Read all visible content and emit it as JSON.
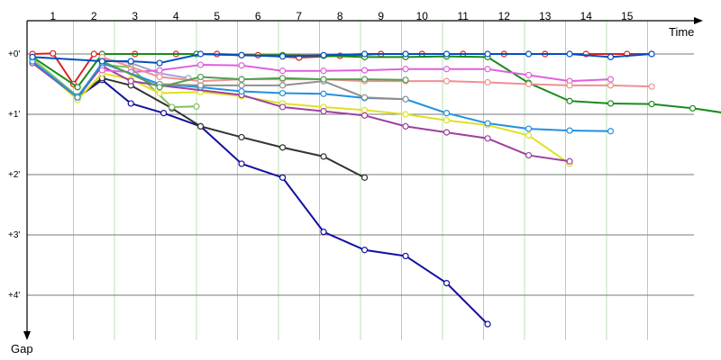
{
  "chart_data": {
    "type": "line",
    "title": "",
    "xlabel": "Time",
    "ylabel": "Gap",
    "x_ticks": [
      "1",
      "2",
      "3",
      "4",
      "5",
      "6",
      "7",
      "8",
      "9",
      "10",
      "11",
      "12",
      "13",
      "14",
      "15"
    ],
    "y_ticks": [
      "+0'",
      "+1'",
      "+2'",
      "+3'",
      "+4'"
    ],
    "ylim": [
      0,
      4.6
    ],
    "grid": true,
    "legend": "none",
    "series": [
      {
        "color": "#e02020",
        "values": [
          [
            0.5,
            0.0
          ],
          [
            1.0,
            -0.01
          ],
          [
            1.5,
            0.5
          ],
          [
            2.0,
            0.0
          ],
          [
            3.0,
            0.0
          ],
          [
            4.0,
            0.0
          ],
          [
            5.0,
            0.0
          ],
          [
            6.0,
            0.02
          ],
          [
            7.0,
            0.06
          ],
          [
            8.0,
            0.03
          ],
          [
            9.0,
            0.0
          ],
          [
            10.0,
            0.0
          ],
          [
            11.0,
            0.0
          ],
          [
            12.0,
            0.0
          ],
          [
            13.0,
            0.0
          ],
          [
            14.0,
            0.0
          ],
          [
            15.0,
            0.0
          ],
          [
            15.6,
            0.0
          ]
        ]
      },
      {
        "color": "#1010a0",
        "values": [
          [
            0.5,
            0.1
          ],
          [
            1.6,
            0.72
          ],
          [
            2.2,
            0.43
          ],
          [
            2.9,
            0.82
          ],
          [
            3.7,
            0.98
          ],
          [
            4.6,
            1.2
          ],
          [
            5.6,
            1.82
          ],
          [
            6.6,
            2.05
          ],
          [
            7.6,
            2.95
          ],
          [
            8.6,
            3.25
          ],
          [
            9.6,
            3.35
          ],
          [
            10.6,
            3.8
          ],
          [
            11.6,
            4.48
          ]
        ]
      },
      {
        "color": "#333333",
        "values": [
          [
            0.5,
            0.12
          ],
          [
            1.6,
            0.72
          ],
          [
            2.2,
            0.4
          ],
          [
            2.9,
            0.52
          ],
          [
            3.9,
            0.9
          ],
          [
            4.6,
            1.2
          ],
          [
            5.6,
            1.38
          ],
          [
            6.6,
            1.55
          ],
          [
            7.6,
            1.7
          ],
          [
            8.6,
            2.05
          ]
        ]
      },
      {
        "color": "#a0a0d0",
        "values": [
          [
            2.2,
            0.08
          ],
          [
            2.9,
            0.15
          ],
          [
            3.6,
            0.32
          ],
          [
            4.3,
            0.4
          ]
        ]
      },
      {
        "color": "#80c060",
        "values": [
          [
            0.5,
            0.08
          ],
          [
            1.6,
            0.7
          ],
          [
            2.2,
            0.18
          ],
          [
            2.9,
            0.22
          ],
          [
            3.9,
            0.88
          ],
          [
            4.5,
            0.87
          ]
        ]
      },
      {
        "color": "#1a8a1a",
        "values": [
          [
            0.5,
            0.05
          ],
          [
            1.6,
            0.55
          ],
          [
            2.2,
            0.0
          ],
          [
            4.5,
            0.0
          ],
          [
            5.6,
            0.02
          ],
          [
            6.6,
            0.02
          ],
          [
            7.6,
            0.03
          ],
          [
            8.6,
            0.05
          ],
          [
            9.6,
            0.05
          ],
          [
            10.6,
            0.04
          ],
          [
            11.6,
            0.05
          ],
          [
            12.6,
            0.48
          ],
          [
            13.6,
            0.78
          ],
          [
            14.6,
            0.82
          ],
          [
            15.6,
            0.83
          ],
          [
            16.6,
            0.9
          ],
          [
            17.6,
            1.0
          ]
        ]
      },
      {
        "color": "#e0e020",
        "values": [
          [
            0.5,
            0.1
          ],
          [
            1.6,
            0.76
          ],
          [
            2.2,
            0.32
          ],
          [
            2.9,
            0.42
          ],
          [
            3.6,
            0.65
          ],
          [
            4.6,
            0.63
          ],
          [
            5.6,
            0.7
          ],
          [
            6.6,
            0.82
          ],
          [
            7.6,
            0.88
          ],
          [
            8.6,
            0.93
          ],
          [
            9.6,
            1.0
          ],
          [
            10.6,
            1.1
          ],
          [
            11.6,
            1.18
          ],
          [
            12.6,
            1.35
          ],
          [
            13.6,
            1.82
          ]
        ]
      },
      {
        "color": "#a040a0",
        "values": [
          [
            0.5,
            0.15
          ],
          [
            1.6,
            0.72
          ],
          [
            2.2,
            0.2
          ],
          [
            2.9,
            0.45
          ],
          [
            3.6,
            0.52
          ],
          [
            5.6,
            0.68
          ],
          [
            6.6,
            0.88
          ],
          [
            7.6,
            0.95
          ],
          [
            8.6,
            1.02
          ],
          [
            9.6,
            1.2
          ],
          [
            10.6,
            1.3
          ],
          [
            11.6,
            1.4
          ],
          [
            12.6,
            1.68
          ],
          [
            13.6,
            1.78
          ]
        ]
      },
      {
        "color": "#e060e0",
        "values": [
          [
            2.2,
            0.27
          ],
          [
            2.9,
            0.3
          ],
          [
            3.6,
            0.27
          ],
          [
            4.6,
            0.18
          ],
          [
            5.6,
            0.19
          ],
          [
            6.6,
            0.28
          ],
          [
            7.6,
            0.28
          ],
          [
            8.6,
            0.27
          ],
          [
            9.6,
            0.25
          ],
          [
            10.6,
            0.25
          ],
          [
            11.6,
            0.25
          ],
          [
            12.6,
            0.35
          ],
          [
            13.6,
            0.45
          ],
          [
            14.6,
            0.42
          ]
        ]
      },
      {
        "color": "#f09090",
        "values": [
          [
            2.2,
            0.05
          ],
          [
            3.6,
            0.38
          ],
          [
            4.6,
            0.45
          ],
          [
            5.6,
            0.42
          ],
          [
            6.6,
            0.42
          ],
          [
            7.6,
            0.42
          ],
          [
            8.6,
            0.45
          ],
          [
            9.6,
            0.45
          ],
          [
            10.6,
            0.45
          ],
          [
            11.6,
            0.47
          ],
          [
            12.6,
            0.5
          ],
          [
            13.6,
            0.52
          ],
          [
            14.6,
            0.52
          ],
          [
            15.6,
            0.54
          ]
        ]
      },
      {
        "color": "#2090e0",
        "values": [
          [
            0.5,
            0.12
          ],
          [
            1.6,
            0.72
          ],
          [
            2.2,
            0.15
          ],
          [
            3.6,
            0.5
          ],
          [
            4.6,
            0.55
          ],
          [
            5.6,
            0.62
          ],
          [
            6.6,
            0.65
          ],
          [
            7.6,
            0.66
          ],
          [
            8.6,
            0.73
          ],
          [
            9.6,
            0.75
          ],
          [
            10.6,
            0.98
          ],
          [
            11.6,
            1.15
          ],
          [
            12.6,
            1.24
          ],
          [
            13.6,
            1.27
          ],
          [
            14.6,
            1.28
          ]
        ]
      },
      {
        "color": "#909090",
        "values": [
          [
            3.6,
            0.5
          ],
          [
            4.6,
            0.52
          ],
          [
            5.6,
            0.52
          ],
          [
            6.6,
            0.52
          ],
          [
            7.6,
            0.45
          ],
          [
            8.6,
            0.72
          ],
          [
            9.6,
            0.75
          ]
        ]
      },
      {
        "color": "#50a050",
        "values": [
          [
            2.2,
            0.12
          ],
          [
            3.6,
            0.55
          ],
          [
            4.6,
            0.38
          ],
          [
            5.6,
            0.42
          ],
          [
            6.6,
            0.4
          ],
          [
            7.6,
            0.42
          ],
          [
            8.6,
            0.42
          ],
          [
            9.6,
            0.43
          ]
        ]
      },
      {
        "color": "#0050c0",
        "values": [
          [
            0.5,
            0.05
          ],
          [
            2.2,
            0.12
          ],
          [
            2.9,
            0.12
          ],
          [
            3.6,
            0.15
          ],
          [
            4.6,
            0.0
          ],
          [
            5.6,
            0.02
          ],
          [
            6.6,
            0.04
          ],
          [
            7.6,
            0.02
          ],
          [
            8.6,
            0.0
          ],
          [
            9.6,
            0.0
          ],
          [
            10.6,
            0.0
          ],
          [
            11.6,
            0.0
          ],
          [
            12.6,
            0.0
          ],
          [
            13.6,
            0.0
          ],
          [
            14.6,
            0.05
          ],
          [
            15.6,
            0.0
          ]
        ]
      }
    ]
  }
}
